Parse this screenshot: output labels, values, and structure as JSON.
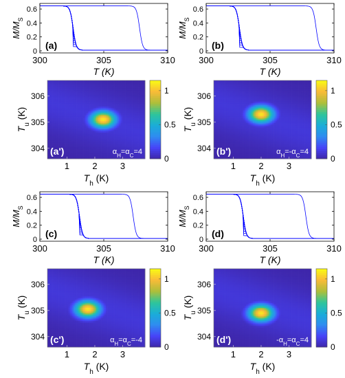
{
  "figure": {
    "colorbar_ticks": [
      {
        "value": 1,
        "label": "1"
      },
      {
        "value": 0.5,
        "label": "0.5"
      },
      {
        "value": 0,
        "label": "0"
      }
    ],
    "colormap": [
      "#3e26a8",
      "#4743f8",
      "#2f8cf0",
      "#1aadd8",
      "#2ec69a",
      "#aebf3a",
      "#f9ba38",
      "#f9fb15"
    ]
  },
  "chart_data": [
    {
      "type": "line",
      "panel_label": "(a)",
      "xlabel": "T (K)",
      "ylabel": "M/M_S",
      "xlim": [
        300,
        310
      ],
      "ylim": [
        -0.03,
        0.68
      ],
      "xticks": [
        "300",
        "305",
        "310"
      ],
      "yticks": [
        "0",
        "0.2",
        "0.4",
        "0.6"
      ],
      "grid": false,
      "series_color": "#0000ff",
      "curves": {
        "count": 18,
        "upper_level": 0.645,
        "lower_level": 0.01,
        "cooling_transition_T": 302.6,
        "heating_transition_T_max": 307.6,
        "minor_loop_top_min": 0.06,
        "minor_loop_top_max": 0.56
      }
    },
    {
      "type": "heatmap",
      "panel_label": "(a')",
      "annotation": "α_H=α_C=4",
      "xlabel": "T_h (K)",
      "ylabel": "T_u (K)",
      "xlim": [
        0.3,
        3.8
      ],
      "ylim": [
        303.6,
        306.6
      ],
      "xticks": [
        "1",
        "2",
        "3"
      ],
      "yticks": [
        "304",
        "305",
        "306"
      ],
      "colorbar_range": [
        0,
        1.15
      ],
      "peak": {
        "T_h": 2.3,
        "T_u": 305.1,
        "value": 1.1
      }
    },
    {
      "type": "line",
      "panel_label": "(b)",
      "xlabel": "T (K)",
      "ylabel": "M/M_S",
      "xlim": [
        300,
        310
      ],
      "ylim": [
        -0.03,
        0.68
      ],
      "xticks": [
        "300",
        "305",
        "310"
      ],
      "yticks": [
        "0",
        "0.2",
        "0.4",
        "0.6"
      ],
      "grid": false,
      "series_color": "#0000ff",
      "curves": {
        "count": 18,
        "upper_level": 0.645,
        "lower_level": 0.01,
        "cooling_transition_T": 302.6,
        "heating_transition_T_max": 308.4,
        "minor_loop_top_min": 0.05,
        "minor_loop_top_max": 0.6
      }
    },
    {
      "type": "heatmap",
      "panel_label": "(b')",
      "annotation": "α_H=-α_C=4",
      "xlabel": "T_h (K)",
      "ylabel": "T_u (K)",
      "xlim": [
        0.3,
        3.8
      ],
      "ylim": [
        303.6,
        306.6
      ],
      "xticks": [
        "1",
        "2",
        "3"
      ],
      "yticks": [
        "304",
        "305",
        "306"
      ],
      "colorbar_range": [
        0,
        1.15
      ],
      "peak": {
        "T_h": 2.0,
        "T_u": 305.3,
        "value": 1.1
      }
    },
    {
      "type": "line",
      "panel_label": "(c)",
      "xlabel": "T (K)",
      "ylabel": "M/M_S",
      "xlim": [
        300,
        310
      ],
      "ylim": [
        -0.03,
        0.68
      ],
      "xticks": [
        "300",
        "305",
        "310"
      ],
      "yticks": [
        "0",
        "0.2",
        "0.4",
        "0.6"
      ],
      "grid": false,
      "series_color": "#0000ff",
      "curves": {
        "count": 18,
        "upper_level": 0.645,
        "lower_level": 0.01,
        "cooling_transition_T": 303.1,
        "heating_transition_T_max": 307.1,
        "minor_loop_top_min": 0.06,
        "minor_loop_top_max": 0.54
      }
    },
    {
      "type": "heatmap",
      "panel_label": "(c')",
      "annotation": "α_H=α_C=-4",
      "xlabel": "T_h (K)",
      "ylabel": "T_u (K)",
      "xlim": [
        0.3,
        3.8
      ],
      "ylim": [
        303.6,
        306.6
      ],
      "xticks": [
        "1",
        "2",
        "3"
      ],
      "yticks": [
        "304",
        "305",
        "306"
      ],
      "colorbar_range": [
        0,
        1.15
      ],
      "peak": {
        "T_h": 1.75,
        "T_u": 305.05,
        "value": 1.1
      }
    },
    {
      "type": "line",
      "panel_label": "(d)",
      "xlabel": "T (K)",
      "ylabel": "M/M_S",
      "xlim": [
        300,
        310
      ],
      "ylim": [
        -0.03,
        0.68
      ],
      "xticks": [
        "300",
        "305",
        "310"
      ],
      "yticks": [
        "0",
        "0.2",
        "0.4",
        "0.6"
      ],
      "grid": false,
      "series_color": "#0000ff",
      "curves": {
        "count": 18,
        "upper_level": 0.645,
        "lower_level": 0.01,
        "cooling_transition_T": 302.9,
        "heating_transition_T_max": 307.6,
        "minor_loop_top_min": 0.05,
        "minor_loop_top_max": 0.6
      }
    },
    {
      "type": "heatmap",
      "panel_label": "(d')",
      "annotation": "-α_H=α_C=4",
      "xlabel": "T_h (K)",
      "ylabel": "T_u (K)",
      "xlim": [
        0.3,
        3.8
      ],
      "ylim": [
        303.6,
        306.6
      ],
      "xticks": [
        "1",
        "2",
        "3"
      ],
      "yticks": [
        "304",
        "305",
        "306"
      ],
      "colorbar_range": [
        0,
        1.15
      ],
      "peak": {
        "T_h": 2.0,
        "T_u": 304.9,
        "value": 1.1
      }
    }
  ]
}
